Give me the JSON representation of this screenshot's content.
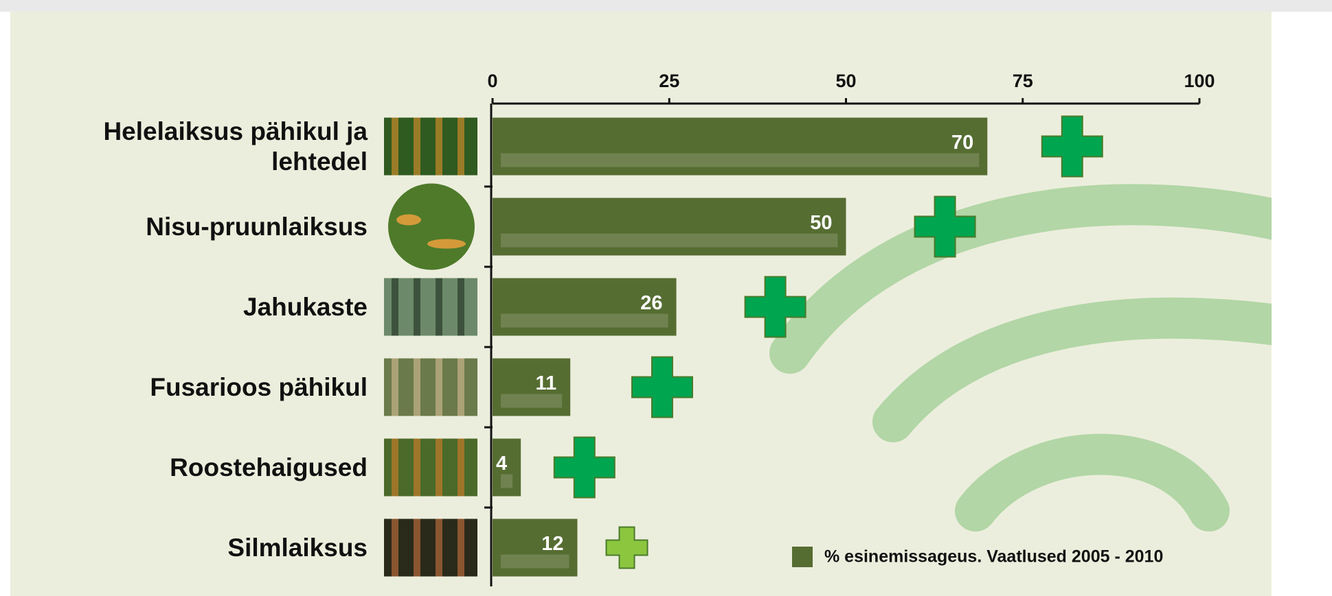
{
  "chart_data": {
    "type": "bar",
    "orientation": "horizontal",
    "categories": [
      "Helelaiksus pähikul ja lehtedel",
      "Nisu-pruunlaiksus",
      "Jahukaste",
      "Fusarioos pähikul",
      "Roostehaigused",
      "Silmlaiksus"
    ],
    "series": [
      {
        "name": "% esinemissageus. Vaatlused 2005 - 2010",
        "color": "#566d32",
        "values": [
          70,
          50,
          26,
          11,
          4,
          12
        ]
      }
    ],
    "xlim": [
      0,
      100
    ],
    "xticks": [
      0,
      25,
      50,
      75,
      100
    ],
    "grid": false,
    "legend": "bottom-right"
  }
}
